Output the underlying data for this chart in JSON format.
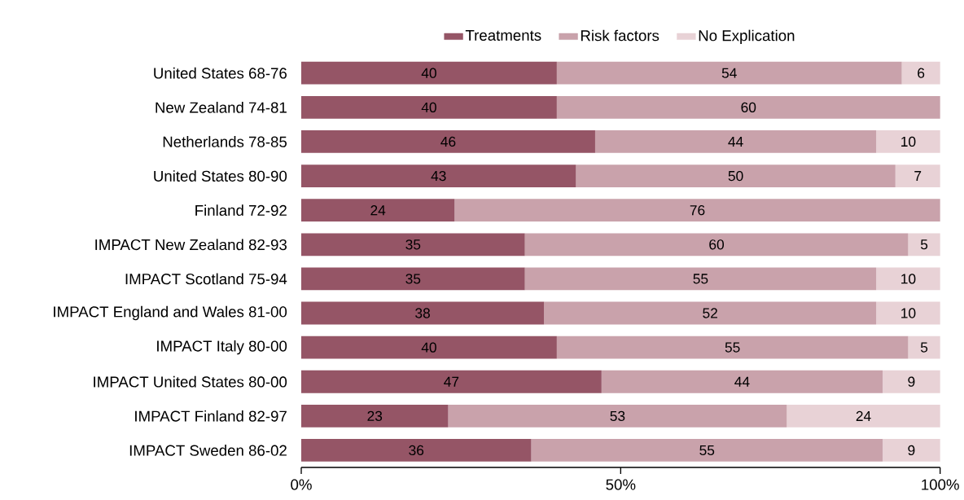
{
  "chart_data": {
    "type": "bar",
    "orientation": "horizontal",
    "stacked": true,
    "categories": [
      "United States 68-76",
      "New Zealand 74-81",
      "Netherlands 78-85",
      "United States 80-90",
      "Finland 72-92",
      "IMPACT New Zealand 82-93",
      "IMPACT Scotland 75-94",
      "IMPACT England and Wales 81-00",
      "IMPACT Italy 80-00",
      "IMPACT United States 80-00",
      "IMPACT Finland 82-97",
      "IMPACT Sweden 86-02"
    ],
    "series": [
      {
        "name": "Treatments",
        "color": "#955566",
        "values": [
          40,
          40,
          46,
          43,
          24,
          35,
          35,
          38,
          40,
          47,
          23,
          36
        ]
      },
      {
        "name": "Risk factors",
        "color": "#c9a2ab",
        "values": [
          54,
          60,
          44,
          50,
          76,
          60,
          55,
          52,
          55,
          44,
          53,
          55
        ]
      },
      {
        "name": "No Explication",
        "color": "#e8d2d6",
        "values": [
          6,
          null,
          10,
          7,
          null,
          5,
          10,
          10,
          5,
          9,
          24,
          9
        ]
      }
    ],
    "xlim": [
      0,
      100
    ],
    "xticks": [
      {
        "value": 0,
        "label": "0%"
      },
      {
        "value": 50,
        "label": "50%"
      },
      {
        "value": 100,
        "label": "100%"
      }
    ],
    "data_labels": true,
    "legend": "top",
    "grid": false
  }
}
